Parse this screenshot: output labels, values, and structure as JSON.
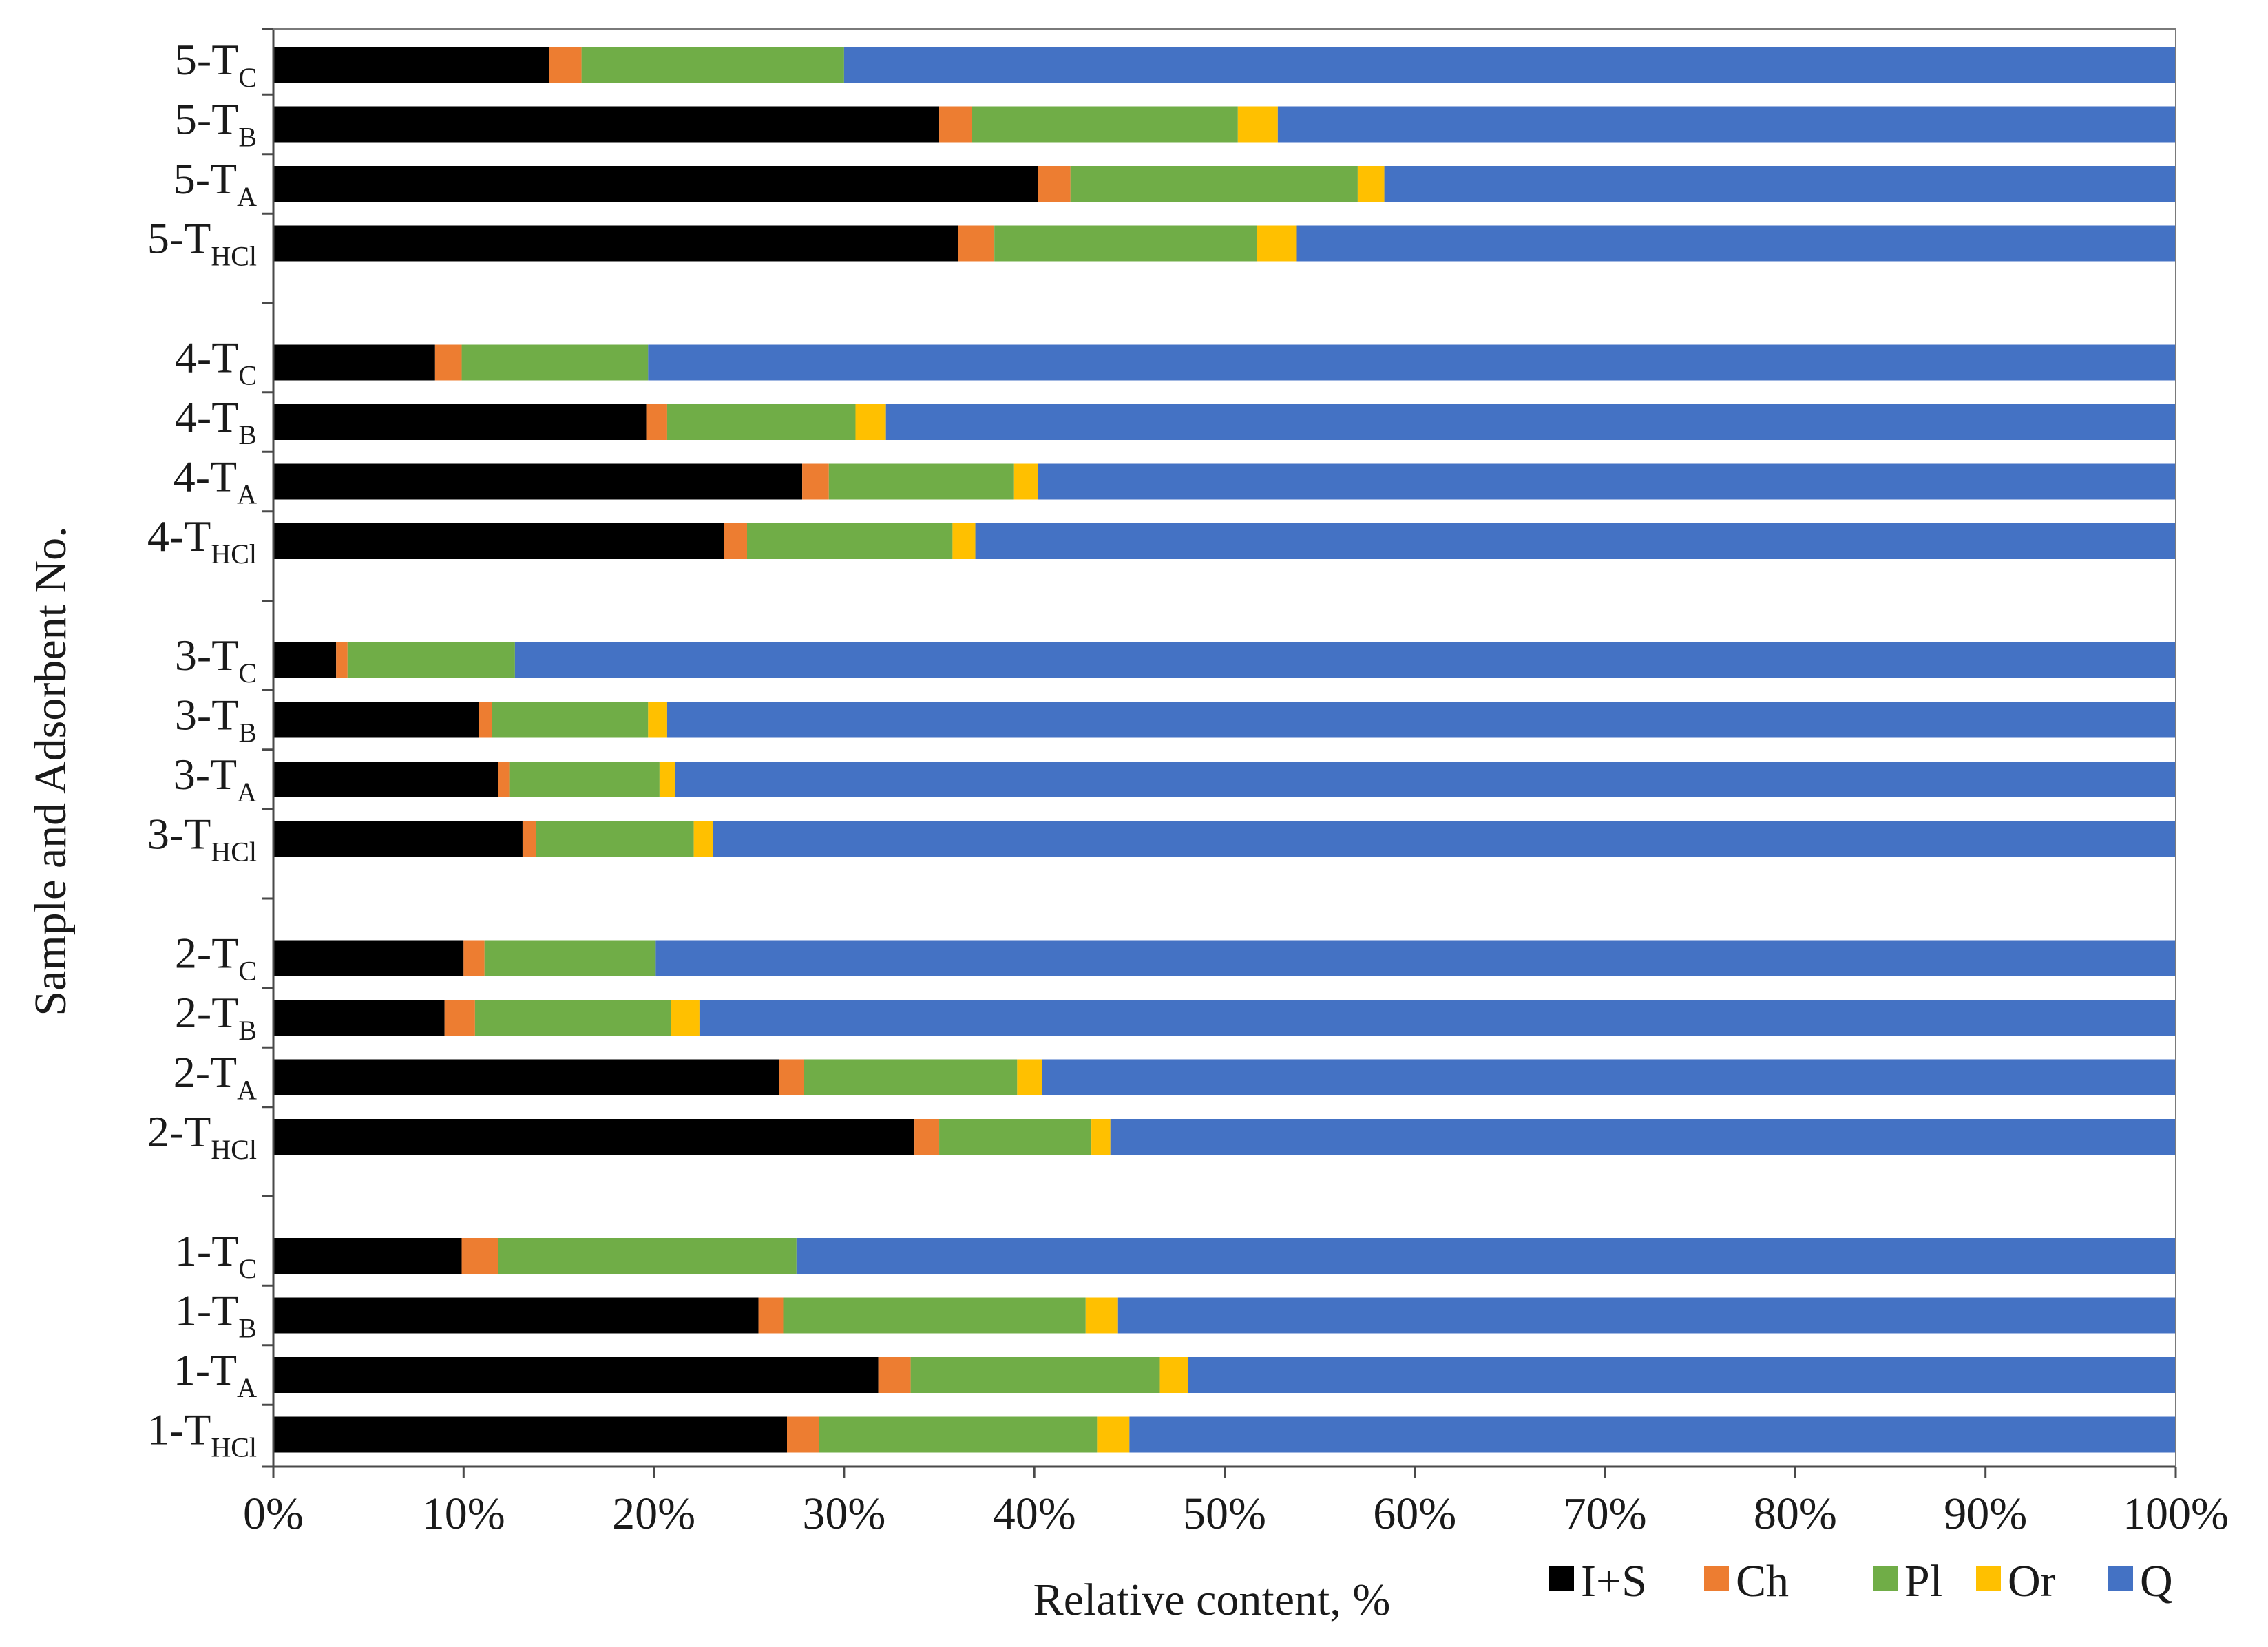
{
  "chart_data": {
    "type": "stacked-bar-horizontal",
    "title": "",
    "xlabel": "Relative content, %",
    "ylabel": "Sample and Adsorbent No.",
    "xlim": [
      0,
      100
    ],
    "x_ticks": [
      "0%",
      "10%",
      "20%",
      "30%",
      "40%",
      "50%",
      "60%",
      "70%",
      "80%",
      "90%",
      "100%"
    ],
    "legend_position": "bottom-right",
    "series": [
      {
        "name": "I+S",
        "color": "#000000"
      },
      {
        "name": "Ch",
        "color": "#ED7D31"
      },
      {
        "name": "Pl",
        "color": "#70AD47"
      },
      {
        "name": "Or",
        "color": "#FFC000"
      },
      {
        "name": "Q",
        "color": "#4472C4"
      }
    ],
    "categories": [
      {
        "main": "5-T",
        "sub": "C",
        "values": [
          14.5,
          1.7,
          13.8,
          0.0,
          70.0
        ]
      },
      {
        "main": "5-T",
        "sub": "B",
        "values": [
          35.0,
          1.7,
          14.0,
          2.1,
          47.2
        ]
      },
      {
        "main": "5-T",
        "sub": "A",
        "values": [
          40.2,
          1.7,
          15.1,
          1.4,
          41.6
        ]
      },
      {
        "main": "5-T",
        "sub": "HCl",
        "values": [
          36.0,
          1.9,
          13.8,
          2.1,
          46.2
        ]
      },
      {
        "main": "4-T",
        "sub": "C",
        "values": [
          8.5,
          1.4,
          9.8,
          0.0,
          80.3
        ]
      },
      {
        "main": "4-T",
        "sub": "B",
        "values": [
          19.6,
          1.1,
          9.9,
          1.6,
          67.8
        ]
      },
      {
        "main": "4-T",
        "sub": "A",
        "values": [
          27.8,
          1.4,
          9.7,
          1.3,
          59.8
        ]
      },
      {
        "main": "4-T",
        "sub": "HCl",
        "values": [
          23.7,
          1.2,
          10.8,
          1.2,
          63.1
        ]
      },
      {
        "main": "3-T",
        "sub": "C",
        "values": [
          3.3,
          0.6,
          8.8,
          0.0,
          87.3
        ]
      },
      {
        "main": "3-T",
        "sub": "B",
        "values": [
          10.8,
          0.7,
          8.2,
          1.0,
          79.3
        ]
      },
      {
        "main": "3-T",
        "sub": "A",
        "values": [
          11.8,
          0.6,
          7.9,
          0.8,
          78.9
        ]
      },
      {
        "main": "3-T",
        "sub": "HCl",
        "values": [
          13.1,
          0.7,
          8.3,
          1.0,
          76.9
        ]
      },
      {
        "main": "2-T",
        "sub": "C",
        "values": [
          10.0,
          1.1,
          9.0,
          0.0,
          79.9
        ]
      },
      {
        "main": "2-T",
        "sub": "B",
        "values": [
          9.0,
          1.6,
          10.3,
          1.5,
          77.6
        ]
      },
      {
        "main": "2-T",
        "sub": "A",
        "values": [
          26.6,
          1.3,
          11.2,
          1.3,
          59.6
        ]
      },
      {
        "main": "2-T",
        "sub": "HCl",
        "values": [
          33.7,
          1.3,
          8.0,
          1.0,
          56.0
        ]
      },
      {
        "main": "1-T",
        "sub": "C",
        "values": [
          9.9,
          1.9,
          15.7,
          0.0,
          72.5
        ]
      },
      {
        "main": "1-T",
        "sub": "B",
        "values": [
          25.5,
          1.3,
          15.9,
          1.7,
          55.6
        ]
      },
      {
        "main": "1-T",
        "sub": "A",
        "values": [
          31.8,
          1.7,
          13.1,
          1.5,
          51.9
        ]
      },
      {
        "main": "1-T",
        "sub": "HCl",
        "values": [
          27.0,
          1.7,
          14.6,
          1.7,
          55.0
        ]
      }
    ]
  }
}
